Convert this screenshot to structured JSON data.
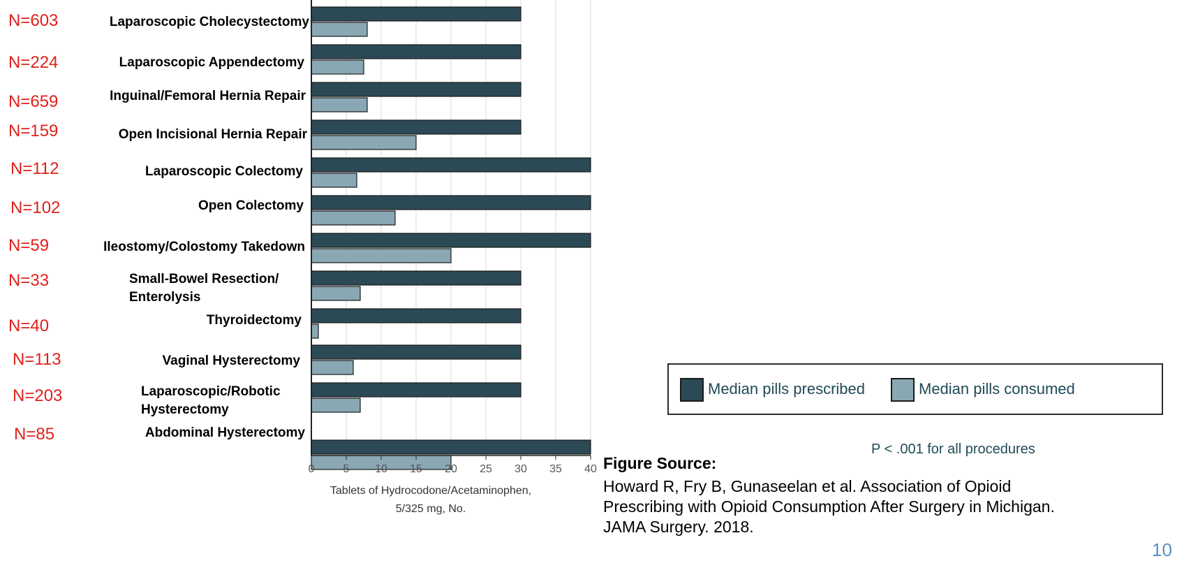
{
  "chart_data": {
    "type": "bar",
    "orientation": "horizontal",
    "categories": [
      "Laparoscopic Cholecystectomy",
      "Laparoscopic Appendectomy",
      "Inguinal/Femoral Hernia Repair",
      "Open Incisional Hernia Repair",
      "Laparoscopic Colectomy",
      "Open Colectomy",
      "Ileostomy/Colostomy Takedown",
      "Small-Bowel Resection/\nEnterolysis",
      "Thyroidectomy",
      "Vaginal Hysterectomy",
      "Laparoscopic/Robotic\nHysterectomy",
      "Abdominal Hysterectomy"
    ],
    "sample_sizes": [
      "N=603",
      "N=224",
      "N=659",
      "N=159",
      "N=112",
      "N=102",
      "N=59",
      "N=33",
      "N=40",
      "N=113",
      "N=203",
      "N=85"
    ],
    "series": [
      {
        "name": "Median pills prescribed",
        "color": "#2b4a55",
        "values": [
          30,
          30,
          30,
          30,
          40,
          40,
          40,
          30,
          30,
          30,
          30,
          40
        ]
      },
      {
        "name": "Median pills consumed",
        "color": "#8aa8b4",
        "values": [
          8,
          7.5,
          8,
          15,
          6.5,
          12,
          20,
          7,
          1,
          6,
          7,
          20
        ]
      }
    ],
    "xlabel": "Tablets of Hydrocodone/Acetaminophen,\n5/325 mg, No.",
    "xlim": [
      0,
      40
    ],
    "xticks": [
      "0",
      "5",
      "10",
      "15",
      "20",
      "25",
      "30",
      "35",
      "40"
    ],
    "grid": true,
    "legend_position": "right",
    "annotation": "P < .001 for all procedures"
  },
  "source": {
    "heading": "Figure Source:",
    "text": "Howard R, Fry B, Gunaseelan et al. Association of Opioid\nPrescribing with Opioid Consumption After Surgery in Michigan.\nJAMA Surgery. 2018."
  },
  "slide_number": "10",
  "colors": {
    "n_label": "#e0201b",
    "prescribed": "#2b4a55",
    "consumed": "#8aa8b4"
  }
}
